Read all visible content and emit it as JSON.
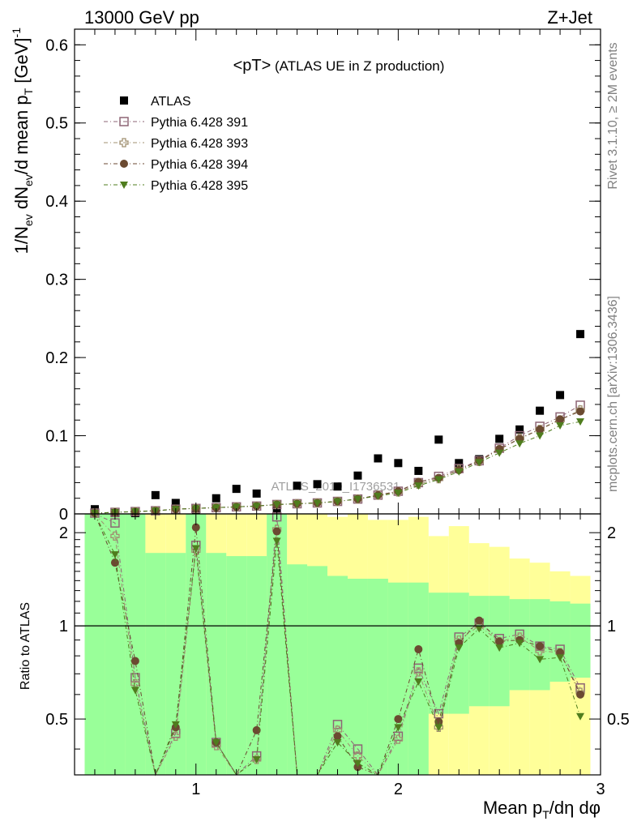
{
  "header": {
    "left": "13000 GeV pp",
    "right": "Z+Jet"
  },
  "side_text": {
    "rivet": "Rivet 3.1.10, ≥ 2M events",
    "mcplots": "mcplots.cern.ch [arXiv:1306.3436]"
  },
  "watermark": "ATLAS_2019_I1736531",
  "chart_data": {
    "type": "scatter",
    "title": "<pT> (ATLAS UE in Z production)",
    "title_parts": {
      "a": "<pT>",
      "b": " (ATLAS UE in Z production)"
    },
    "xlabel": "Mean p_T/dη dφ",
    "xlabel_parts": {
      "a": "Mean p",
      "sub": "T",
      "b": "/dη dφ"
    },
    "ylabel": "1/N_ev dN_ev/d mean p_T [GeV]^-1",
    "ylabel_parts": {
      "a": "1/N",
      "s1": "ev",
      "b": " dN",
      "s2": "ev",
      "c": "/d mean p",
      "s3": "T",
      "d": " [GeV]",
      "sup": "-1"
    },
    "ratio_ylabel": "Ratio to ATLAS",
    "xlim": [
      0.4,
      3.0
    ],
    "ylim": [
      0,
      0.62
    ],
    "ratio_ylim": [
      0.33,
      2.3
    ],
    "x_ticks": [
      "1",
      "2",
      "3"
    ],
    "y_ticks": [
      "0",
      "0.1",
      "0.2",
      "0.3",
      "0.4",
      "0.5",
      "0.6"
    ],
    "ratio_ticks": [
      "0.5",
      "1",
      "2"
    ],
    "x": [
      0.5,
      0.6,
      0.7,
      0.8,
      0.9,
      1.0,
      1.1,
      1.2,
      1.3,
      1.4,
      1.5,
      1.6,
      1.7,
      1.8,
      1.9,
      2.0,
      2.1,
      2.2,
      2.3,
      2.4,
      2.5,
      2.6,
      2.7,
      2.8,
      2.9
    ],
    "series": [
      {
        "name": "ATLAS",
        "color": "#000000",
        "marker": "square-filled",
        "values": [
          0.006,
          0.001,
          0.001,
          0.024,
          0.014,
          0.005,
          0.02,
          0.032,
          0.026,
          0.007,
          0.036,
          0.038,
          0.035,
          0.049,
          0.071,
          0.065,
          0.055,
          0.095,
          0.065,
          0.07,
          0.096,
          0.108,
          0.132,
          0.152,
          0.23
        ]
      },
      {
        "name": "Pythia 6.428 391",
        "color": "#8e6575",
        "marker": "square-open",
        "values": [
          0.001,
          0.002,
          0.003,
          0.004,
          0.006,
          0.007,
          0.008,
          0.009,
          0.01,
          0.012,
          0.013,
          0.014,
          0.016,
          0.019,
          0.024,
          0.029,
          0.04,
          0.048,
          0.058,
          0.068,
          0.084,
          0.1,
          0.112,
          0.124,
          0.139
        ]
      },
      {
        "name": "Pythia 6.428 393",
        "color": "#a09070",
        "marker": "cross-open",
        "values": [
          0.001,
          0.002,
          0.003,
          0.004,
          0.006,
          0.007,
          0.008,
          0.009,
          0.01,
          0.012,
          0.013,
          0.014,
          0.016,
          0.019,
          0.024,
          0.028,
          0.038,
          0.045,
          0.057,
          0.067,
          0.082,
          0.097,
          0.108,
          0.12,
          0.133
        ]
      },
      {
        "name": "Pythia 6.428 394",
        "color": "#6b4a31",
        "marker": "circle-filled",
        "values": [
          0.001,
          0.002,
          0.003,
          0.004,
          0.006,
          0.007,
          0.008,
          0.009,
          0.01,
          0.012,
          0.013,
          0.014,
          0.016,
          0.019,
          0.024,
          0.029,
          0.041,
          0.046,
          0.056,
          0.068,
          0.083,
          0.096,
          0.108,
          0.121,
          0.131
        ]
      },
      {
        "name": "Pythia 6.428 395",
        "color": "#4f7d1e",
        "marker": "triangle-down-filled",
        "values": [
          0.001,
          0.002,
          0.003,
          0.004,
          0.006,
          0.007,
          0.008,
          0.009,
          0.01,
          0.012,
          0.013,
          0.014,
          0.016,
          0.019,
          0.023,
          0.027,
          0.036,
          0.044,
          0.054,
          0.066,
          0.078,
          0.09,
          0.1,
          0.113,
          0.118
        ]
      }
    ],
    "ratio_series": [
      {
        "name": "Pythia 6.428 391",
        "values": [
          3.0,
          2.15,
          0.68,
          0.2,
          0.45,
          1.82,
          0.42,
          0.2,
          0.38,
          2.25,
          0.2,
          0.2,
          0.48,
          0.4,
          0.2,
          0.44,
          0.73,
          0.52,
          0.92,
          1.02,
          0.91,
          0.94,
          0.86,
          0.84,
          0.63
        ]
      },
      {
        "name": "Pythia 6.428 393",
        "values": [
          3.0,
          1.95,
          0.65,
          0.2,
          0.44,
          1.75,
          0.41,
          0.2,
          0.37,
          2.05,
          0.2,
          0.2,
          0.46,
          0.38,
          0.2,
          0.43,
          0.71,
          0.47,
          0.9,
          1.0,
          0.89,
          0.92,
          0.83,
          0.82,
          0.61
        ]
      },
      {
        "name": "Pythia 6.428 394",
        "values": [
          3.0,
          1.6,
          0.77,
          0.2,
          0.47,
          2.08,
          0.42,
          0.2,
          0.46,
          2.02,
          0.2,
          0.2,
          0.44,
          0.35,
          0.2,
          0.5,
          0.84,
          0.49,
          0.88,
          1.04,
          0.89,
          0.9,
          0.86,
          0.82,
          0.6
        ]
      },
      {
        "name": "Pythia 6.428 395",
        "values": [
          3.0,
          1.7,
          0.62,
          0.2,
          0.48,
          1.78,
          0.42,
          0.2,
          0.37,
          1.88,
          0.2,
          0.2,
          0.42,
          0.36,
          0.2,
          0.47,
          0.66,
          0.47,
          0.85,
          0.98,
          0.85,
          0.88,
          0.78,
          0.79,
          0.51
        ]
      }
    ],
    "ratio_band_stat": {
      "color": "#99ff99",
      "upper": [
        2.3,
        2.3,
        2.3,
        1.72,
        1.72,
        2.3,
        1.72,
        1.68,
        1.68,
        2.3,
        1.58,
        1.56,
        1.45,
        1.42,
        1.42,
        1.38,
        1.38,
        1.28,
        1.28,
        1.25,
        1.25,
        1.22,
        1.22,
        1.2,
        1.18
      ],
      "lower": [
        0.33,
        0.33,
        0.33,
        0.33,
        0.33,
        0.33,
        0.33,
        0.33,
        0.33,
        0.33,
        0.33,
        0.33,
        0.33,
        0.33,
        0.33,
        0.33,
        0.33,
        0.52,
        0.52,
        0.55,
        0.55,
        0.62,
        0.62,
        0.66,
        0.68
      ]
    },
    "ratio_band_total": {
      "color": "#ffff99",
      "upper": [
        2.3,
        2.3,
        2.3,
        2.3,
        2.3,
        2.3,
        2.3,
        2.3,
        2.3,
        2.3,
        2.3,
        2.3,
        2.25,
        2.3,
        2.2,
        2.2,
        2.25,
        1.95,
        2.1,
        1.85,
        1.8,
        1.65,
        1.6,
        1.5,
        1.45
      ],
      "lower": [
        0.33,
        0.33,
        0.33,
        0.33,
        0.33,
        0.33,
        0.33,
        0.33,
        0.33,
        0.33,
        0.33,
        0.33,
        0.33,
        0.33,
        0.33,
        0.33,
        0.33,
        0.33,
        0.33,
        0.33,
        0.33,
        0.33,
        0.33,
        0.33,
        0.33
      ]
    },
    "legend_position": "top-left",
    "grid": false
  }
}
